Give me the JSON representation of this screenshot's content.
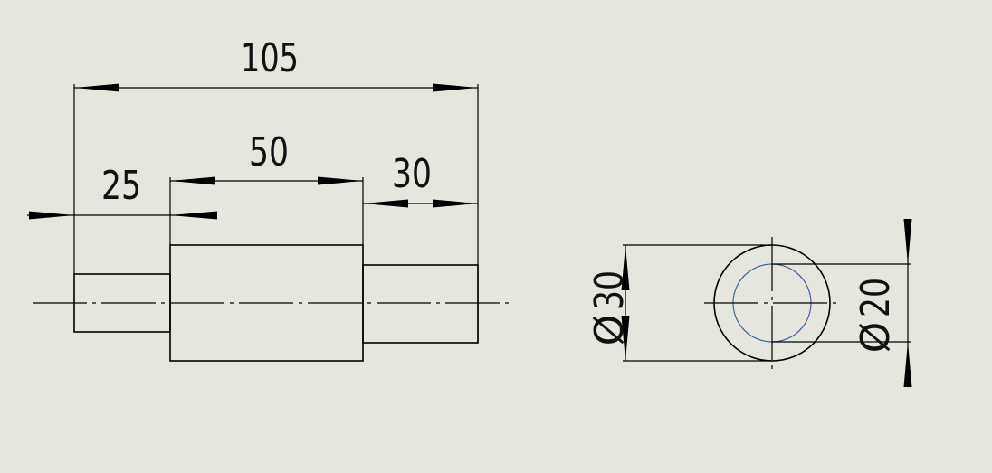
{
  "colors": {
    "background": "#e6e6dc",
    "line": "#000000",
    "hidden_circle": "#3a5fa8"
  },
  "dimensions": {
    "overall_length": "105",
    "middle_length": "50",
    "right_length": "30",
    "left_length": "25",
    "outer_diameter": "30",
    "inner_diameter": "20"
  },
  "symbols": {
    "diameter": "Ø"
  }
}
